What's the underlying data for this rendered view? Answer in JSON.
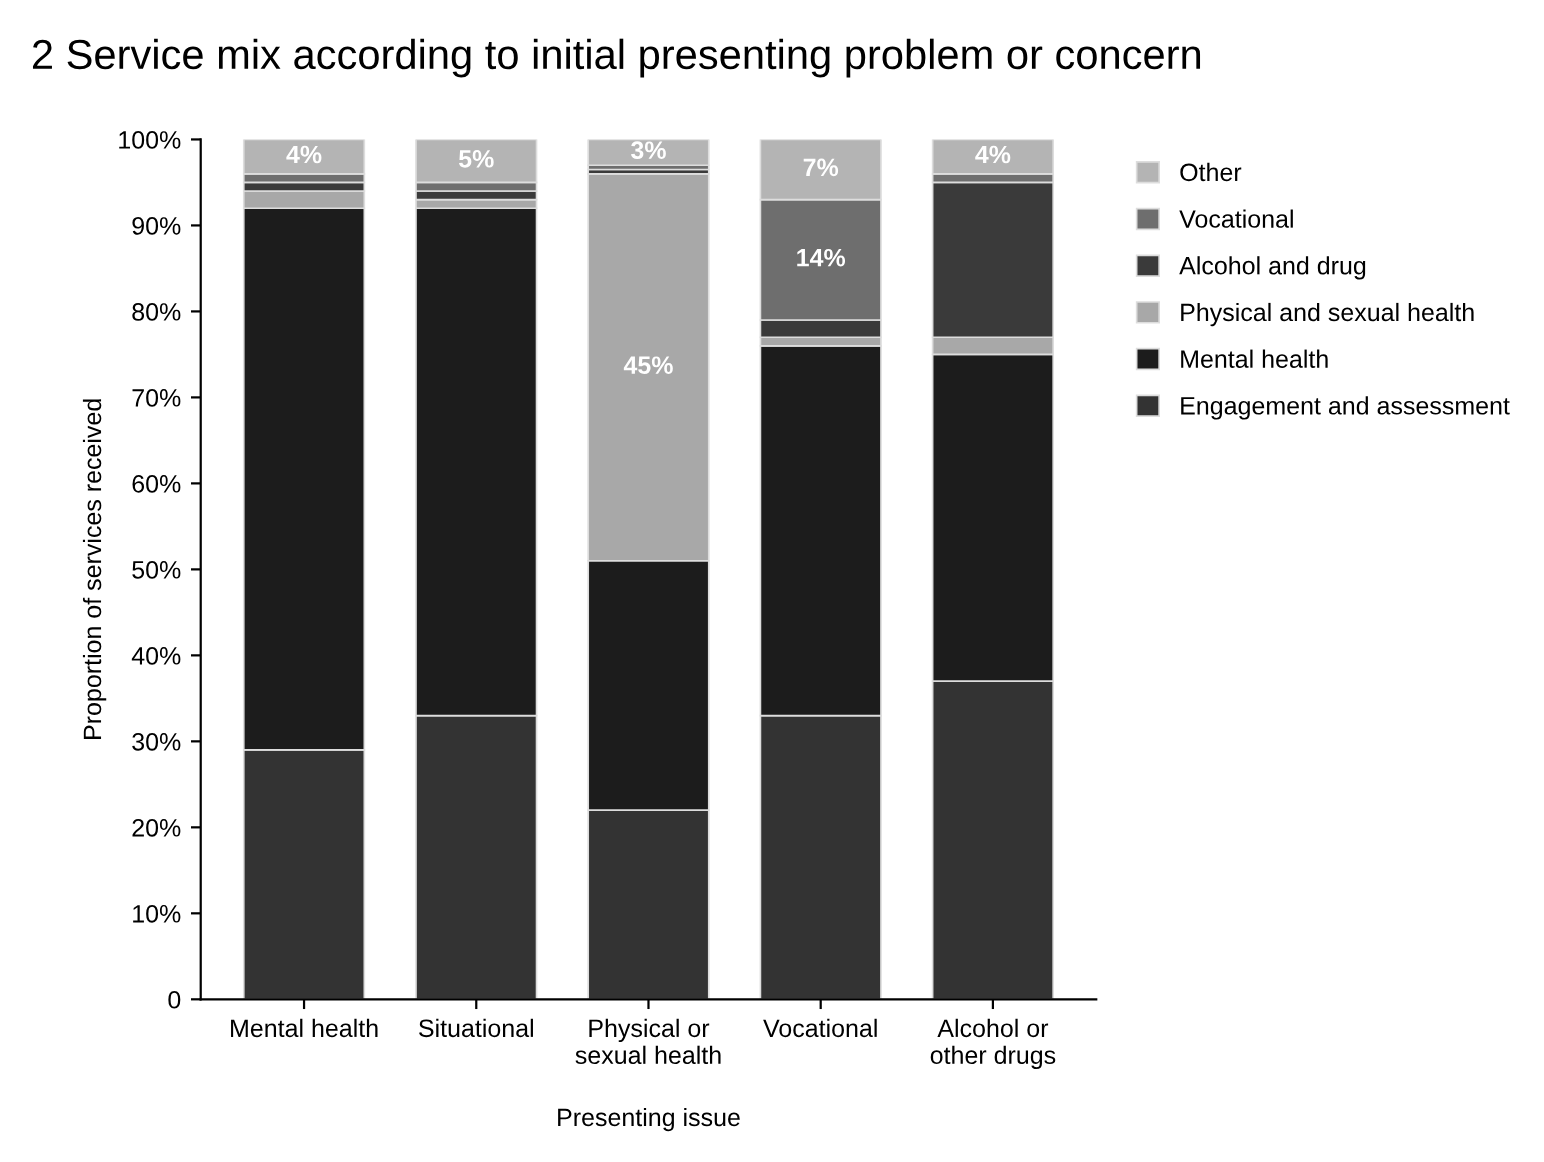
{
  "chart_data": {
    "type": "bar",
    "stacked": true,
    "title": "2 Service mix according to initial presenting problem or concern",
    "xlabel": "Presenting issue",
    "ylabel": "Proportion of services received",
    "categories": [
      "Mental health",
      "Situational",
      "Physical or\nsexual health",
      "Vocational",
      "Alcohol or\nother drugs"
    ],
    "series": [
      {
        "name": "Engagement and assessment",
        "color": "#333333",
        "values": [
          29,
          33,
          22,
          33,
          37
        ],
        "value_labels": [
          null,
          null,
          null,
          null,
          null
        ]
      },
      {
        "name": "Mental health",
        "color": "#1c1c1c",
        "values": [
          63,
          59,
          29,
          43,
          38
        ],
        "value_labels": [
          null,
          null,
          null,
          null,
          null
        ]
      },
      {
        "name": "Physical and sexual health",
        "color": "#a8a8a8",
        "values": [
          2,
          1,
          45,
          1,
          2
        ],
        "value_labels": [
          null,
          null,
          "45%",
          null,
          null
        ]
      },
      {
        "name": "Alcohol and drug",
        "color": "#3a3a3a",
        "values": [
          1,
          1,
          0.5,
          2,
          18
        ],
        "value_labels": [
          null,
          null,
          null,
          null,
          null
        ]
      },
      {
        "name": "Vocational",
        "color": "#6e6e6e",
        "values": [
          1,
          1,
          0.5,
          14,
          1
        ],
        "value_labels": [
          null,
          null,
          null,
          "14%",
          null
        ]
      },
      {
        "name": "Other",
        "color": "#b4b4b4",
        "values": [
          4,
          5,
          3,
          7,
          4
        ],
        "value_labels": [
          "4%",
          "5%",
          "3%",
          "7%",
          "4%"
        ]
      }
    ],
    "ylim": [
      0,
      100
    ],
    "yticks": [
      0,
      {
        "value": 10,
        "label": "10%"
      },
      {
        "value": 20,
        "label": "20%"
      },
      {
        "value": 30,
        "label": "30%"
      },
      {
        "value": 40,
        "label": "40%"
      },
      {
        "value": 50,
        "label": "50%"
      },
      {
        "value": 60,
        "label": "60%"
      },
      {
        "value": 70,
        "label": "70%"
      },
      {
        "value": 80,
        "label": "80%"
      },
      {
        "value": 90,
        "label": "90%"
      },
      {
        "value": 100,
        "label": "100%"
      }
    ],
    "legend": "right",
    "grid": false
  }
}
